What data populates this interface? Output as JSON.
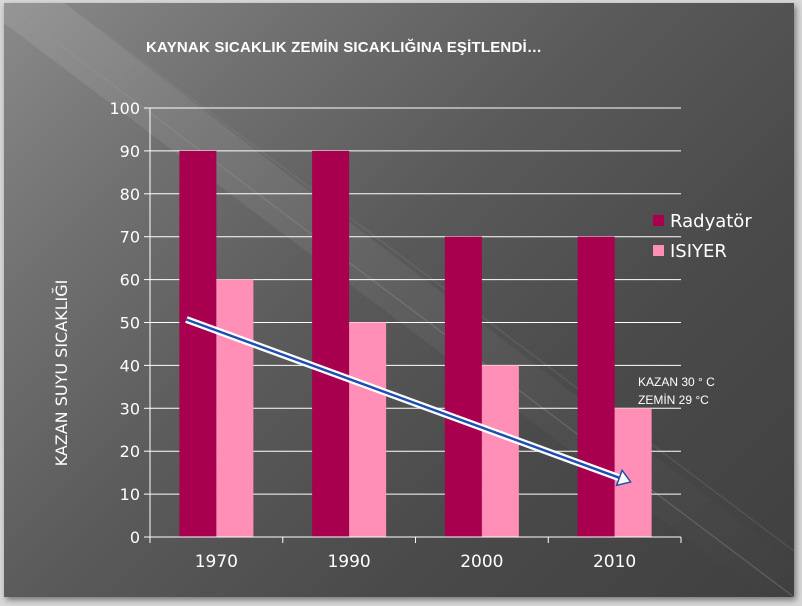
{
  "slide": {
    "title": "KAYNAK SICAKLIK ZEMİN SICAKLIĞINA EŞİTLENDİ…",
    "background": "#5a5a5a"
  },
  "chart_data": {
    "type": "bar",
    "categories": [
      "1970",
      "1990",
      "2000",
      "2010"
    ],
    "series": [
      {
        "name": "Radyatör",
        "values": [
          90,
          90,
          70,
          70
        ],
        "color": "#a8004e"
      },
      {
        "name": "ISIYER",
        "values": [
          60,
          50,
          40,
          30
        ],
        "color": "#ff8fb6"
      }
    ],
    "ylabel": "KAZAN SUYU SICAKLIĞI",
    "xlabel": "",
    "ylim": [
      0,
      100
    ],
    "yticks": [
      0,
      10,
      20,
      30,
      40,
      50,
      60,
      70,
      80,
      90,
      100
    ],
    "grid": true,
    "legend": "right",
    "annotations": [
      "KAZAN 30 ° C",
      "ZEMİN 29 °C"
    ],
    "trend_arrow": {
      "from": {
        "category": "1970",
        "value": 50
      },
      "to": {
        "category": "2010",
        "value": 14
      }
    }
  }
}
